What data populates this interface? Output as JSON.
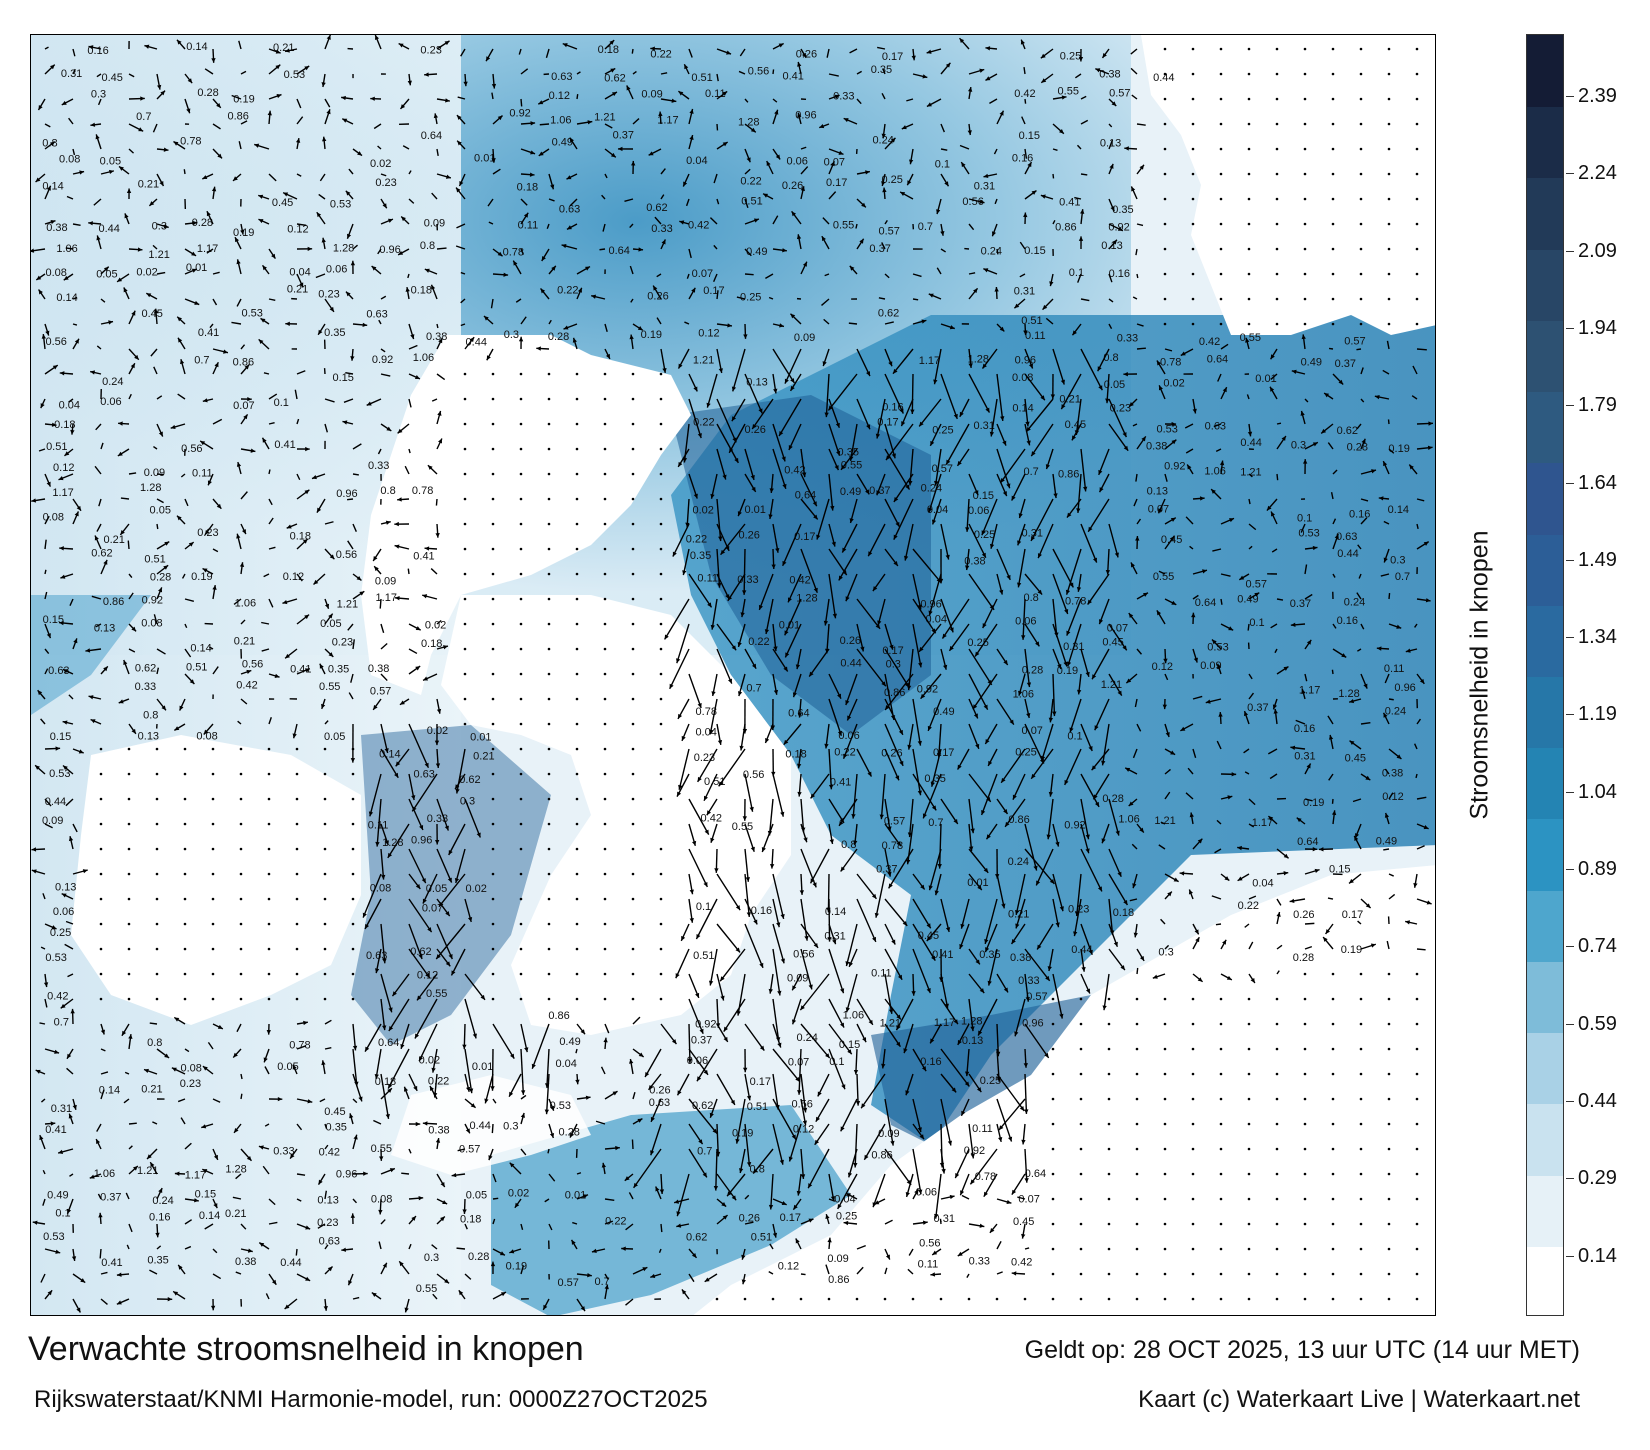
{
  "title": "Verwachte stroomsnelheid in knopen",
  "subtitle": "Rijkswaterstaat/KNMI Harmonie-model, run: 0000Z27OCT2025",
  "valid_time": "Geldt op: 28 OCT 2025, 13 uur UTC (14 uur MET)",
  "credits": "Kaart (c) Waterkaart Live | Waterkaart.net",
  "colorbar": {
    "title": "Stroomsnelheid in knopen",
    "ticks": [
      "2.39",
      "2.24",
      "2.09",
      "1.94",
      "1.79",
      "1.64",
      "1.49",
      "1.34",
      "1.19",
      "1.04",
      "0.89",
      "0.74",
      "0.59",
      "0.44",
      "0.29",
      "0.14"
    ],
    "colors": [
      "#ffffff",
      "#e6f1f7",
      "#c9e2ef",
      "#a9d1e6",
      "#7ebcd9",
      "#4ea6cd",
      "#2c93c2",
      "#2484b3",
      "#2677a8",
      "#2a6aa0",
      "#2c5e97",
      "#2f558f",
      "#2e5a80",
      "#2d5172",
      "#284666",
      "#223a58",
      "#1b2c48",
      "#141c35"
    ]
  },
  "map": {
    "land_color": "#ffffff",
    "water_light": "#e8f2f8",
    "water_mid": "#4fa3cc",
    "water_dark": "#1e5f96",
    "arrow_color": "#000000",
    "sample_speed_labels": [
      "0.16",
      "0.14",
      "0.21",
      "0.23",
      "0.18",
      "0.22",
      "0.26",
      "0.17",
      "0.25",
      "0.31",
      "0.45",
      "0.53",
      "0.63",
      "0.62",
      "0.51",
      "0.56",
      "0.41",
      "0.35",
      "0.38",
      "0.44",
      "0.3",
      "0.28",
      "0.19",
      "0.12",
      "0.09",
      "0.11",
      "0.33",
      "0.42",
      "0.55",
      "0.57",
      "0.7",
      "0.86",
      "0.92",
      "1.06",
      "1.21",
      "1.17",
      "1.28",
      "0.96",
      "0.8",
      "0.78",
      "0.64",
      "0.49",
      "0.37",
      "0.24",
      "0.15",
      "0.13",
      "0.08",
      "0.05",
      "0.02",
      "0.01",
      "0.04",
      "0.06",
      "0.07",
      "0.1"
    ]
  }
}
